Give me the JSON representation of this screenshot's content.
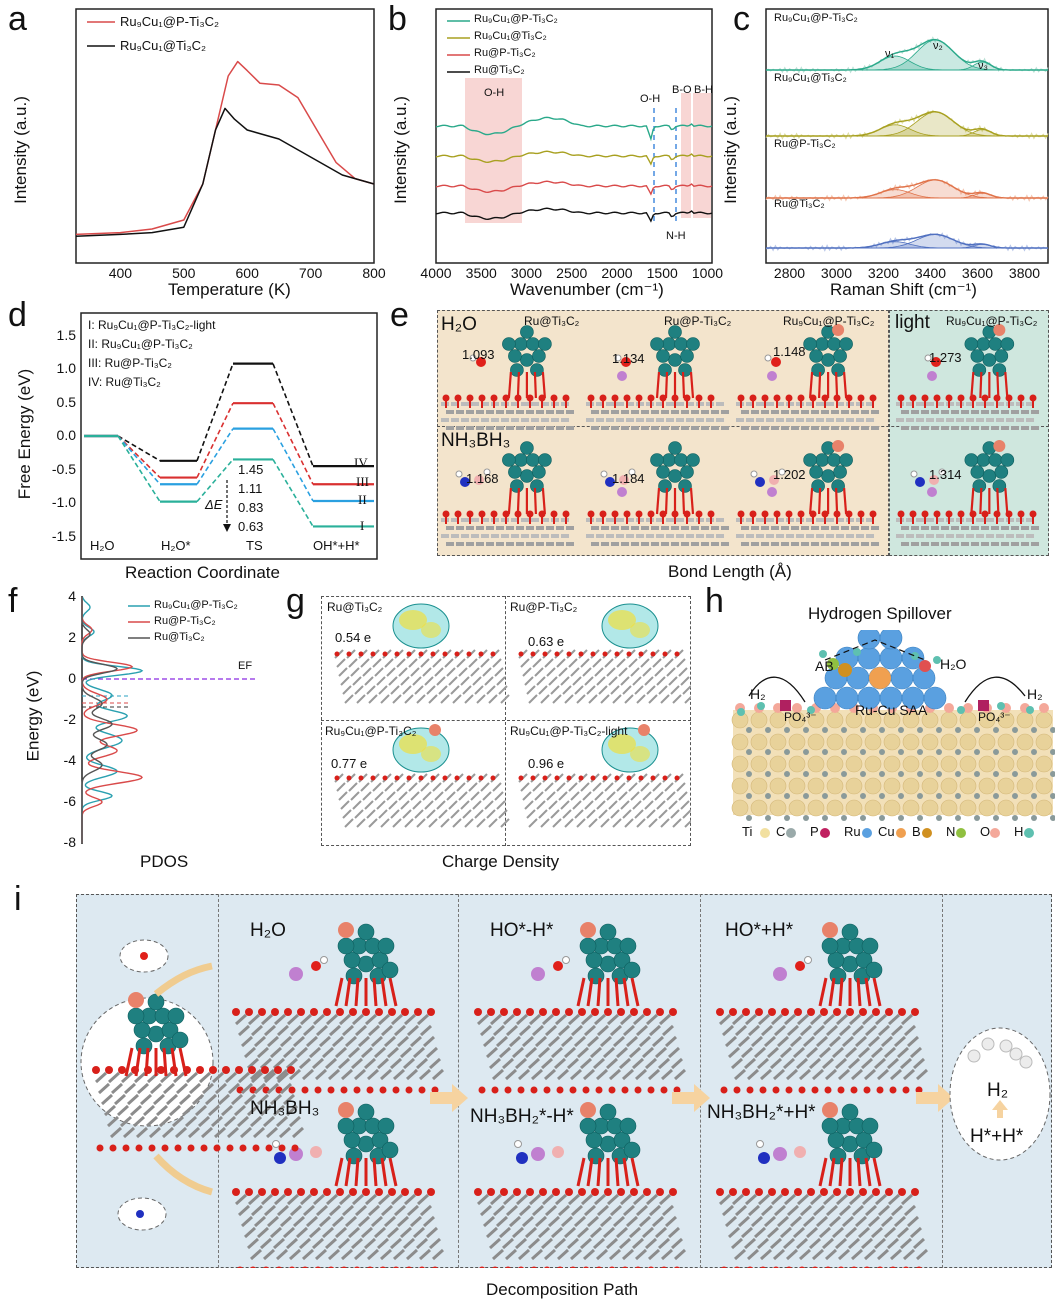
{
  "panels": {
    "a": {
      "letter": "a",
      "legend": [
        "Ru₉Cu₁@P-Ti₃C₂",
        "Ru₉Cu₁@Ti₃C₂"
      ],
      "xlabel": "Temperature (K)",
      "ylabel": "Intensity (a.u.)",
      "xticks": [
        "400",
        "500",
        "600",
        "700",
        "800"
      ]
    },
    "b": {
      "letter": "b",
      "legend": [
        "Ru₉Cu₁@P-Ti₃C₂",
        "Ru₉Cu₁@Ti₃C₂",
        "Ru@P-Ti₃C₂",
        "Ru@Ti₃C₂"
      ],
      "xlabel": "Wavenumber (cm⁻¹)",
      "ylabel": "Intensity (a.u.)",
      "xticks": [
        "4000",
        "3500",
        "3000",
        "2500",
        "2000",
        "1500",
        "1000"
      ],
      "annotations": [
        "O-H",
        "O-H",
        "B-O",
        "B-H",
        "N-H"
      ]
    },
    "c": {
      "letter": "c",
      "series_labels": [
        "Ru₉Cu₁@P-Ti₃C₂",
        "Ru₉Cu₁@Ti₃C₂",
        "Ru@P-Ti₃C₂",
        "Ru@Ti₃C₂"
      ],
      "peak_labels": [
        "ν₁",
        "ν₂",
        "ν₃"
      ],
      "xlabel": "Raman Shift (cm⁻¹)",
      "ylabel": "Intensity (a.u.)",
      "xticks": [
        "2800",
        "3000",
        "3200",
        "3400",
        "3600",
        "3800"
      ]
    },
    "d": {
      "letter": "d",
      "legend": [
        "I: Ru₉Cu₁@P-Ti₃C₂-light",
        "II: Ru₉Cu₁@P-Ti₃C₂",
        "III: Ru@P-Ti₃C₂",
        "IV: Ru@Ti₃C₂"
      ],
      "ylabel": "Free Energy (eV)",
      "xlabel": "Reaction Coordinate",
      "yticks": [
        "1.5",
        "1.0",
        "0.5",
        "0.0",
        "-0.5",
        "-1.0",
        "-1.5"
      ],
      "stages": [
        "H₂O",
        "H₂O*",
        "TS",
        "OH*+H*"
      ],
      "roman": [
        "IV",
        "III",
        "II",
        "I"
      ],
      "barriers": [
        "1.45",
        "1.11",
        "0.83",
        "0.63"
      ],
      "delta": "ΔE"
    },
    "e": {
      "letter": "e",
      "row1_label": "H₂O",
      "row2_label": "NH₃BH₃",
      "light_label": "light",
      "structures": [
        "Ru@Ti₃C₂",
        "Ru@P-Ti₃C₂",
        "Ru₉Cu₁@P-Ti₃C₂",
        "Ru₉Cu₁@P-Ti₃C₂"
      ],
      "bonds_row1": [
        "1.093",
        "1.134",
        "1.148",
        "1.273"
      ],
      "bonds_row2": [
        "1.168",
        "1.184",
        "1.202",
        "1.314"
      ],
      "xlabel": "Bond Length (Å)"
    },
    "f": {
      "letter": "f",
      "legend": [
        "Ru₉Cu₁@P-Ti₃C₂",
        "Ru@P-Ti₃C₂",
        "Ru@Ti₃C₂"
      ],
      "ylabel": "Energy (eV)",
      "yticks": [
        "4",
        "2",
        "0",
        "-2",
        "-4",
        "-6",
        "-8"
      ],
      "ef": "EF",
      "xlabel": "PDOS"
    },
    "g": {
      "letter": "g",
      "cells": [
        {
          "title": "Ru@Ti₃C₂",
          "charge": "0.54 e"
        },
        {
          "title": "Ru@P-Ti₃C₂",
          "charge": "0.63 e"
        },
        {
          "title": "Ru₉Cu₁@P-Ti₃C₂",
          "charge": "0.77 e"
        },
        {
          "title": "Ru₉Cu₁@P-Ti₃C₂-light",
          "charge": "0.96 e"
        }
      ],
      "xlabel": "Charge Density"
    },
    "h": {
      "letter": "h",
      "title": "Hydrogen Spillover",
      "labels": [
        "AB",
        "H₂O",
        "H₂",
        "H₂",
        "PO₄³⁻",
        "PO₄³⁻",
        "Ru-Cu SAA"
      ],
      "legend": [
        "Ti",
        "C",
        "P",
        "Ru",
        "Cu",
        "B",
        "N",
        "O",
        "H"
      ]
    },
    "i": {
      "letter": "i",
      "steps": [
        "H₂O",
        "HO*-H*",
        "HO*+H*",
        "NH₃BH₃",
        "NH₃BH₂*-H*",
        "NH₃BH₂*+H*"
      ],
      "product": "H₂",
      "product_sub": "H*+H*",
      "xlabel": "Decomposition Path"
    }
  },
  "colors": {
    "teal": "#2aa98a",
    "olive": "#a8a020",
    "red": "#d94a4a",
    "black": "#111111",
    "blue": "#2aa0e0",
    "dark_teal": "#1f7a7a"
  },
  "chart_data": [
    {
      "type": "line",
      "panel": "a",
      "xlabel": "Temperature (K)",
      "ylabel": "Intensity (a.u.)",
      "xlim": [
        330,
        800
      ],
      "series": [
        {
          "name": "Ru₉Cu₁@P-Ti₃C₂",
          "x": [
            330,
            400,
            450,
            500,
            530,
            550,
            570,
            585,
            600,
            620,
            650,
            680,
            710,
            740,
            770,
            800
          ],
          "y": [
            0.02,
            0.03,
            0.05,
            0.1,
            0.3,
            0.6,
            0.9,
            0.98,
            0.93,
            0.86,
            0.85,
            0.78,
            0.6,
            0.42,
            0.33,
            0.3
          ]
        },
        {
          "name": "Ru₉Cu₁@Ti₃C₂",
          "x": [
            330,
            400,
            450,
            500,
            530,
            550,
            565,
            580,
            600,
            620,
            650,
            700,
            750,
            800
          ],
          "y": [
            0.01,
            0.02,
            0.03,
            0.06,
            0.3,
            0.6,
            0.72,
            0.66,
            0.6,
            0.58,
            0.55,
            0.45,
            0.35,
            0.3
          ]
        }
      ]
    },
    {
      "type": "line",
      "panel": "b",
      "xlabel": "Wavenumber (cm⁻¹)",
      "ylabel": "Intensity (a.u.)",
      "xlim": [
        4000,
        950
      ],
      "series": [
        {
          "name": "Ru₉Cu₁@P-Ti₃C₂"
        },
        {
          "name": "Ru₉Cu₁@Ti₃C₂"
        },
        {
          "name": "Ru@P-Ti₃C₂"
        },
        {
          "name": "Ru@Ti₃C₂"
        }
      ],
      "peaks": [
        1630,
        1390,
        1180,
        1050
      ],
      "oh_band": [
        3700,
        3100
      ]
    },
    {
      "type": "line",
      "panel": "c",
      "xlabel": "Raman Shift (cm⁻¹)",
      "ylabel": "Intensity (a.u.)",
      "xlim": [
        2700,
        3900
      ],
      "series": [
        {
          "name": "Ru₉Cu₁@P-Ti₃C₂",
          "peaks": [
            3250,
            3420,
            3620
          ]
        },
        {
          "name": "Ru₉Cu₁@Ti₃C₂",
          "peaks": [
            3250,
            3420,
            3620
          ]
        },
        {
          "name": "Ru@P-Ti₃C₂",
          "peaks": [
            3250,
            3420,
            3620
          ]
        },
        {
          "name": "Ru@Ti₃C₂",
          "peaks": [
            3250,
            3420,
            3620
          ]
        }
      ]
    },
    {
      "type": "line",
      "panel": "d",
      "ylabel": "Free Energy (eV)",
      "xlabel": "Reaction Coordinate",
      "ylim": [
        -1.7,
        1.8
      ],
      "categories": [
        "H₂O",
        "H₂O*",
        "TS",
        "OH*+H*"
      ],
      "series": [
        {
          "name": "IV: Ru@Ti₃C₂",
          "values": [
            0.0,
            -0.37,
            1.08,
            -0.45
          ]
        },
        {
          "name": "III: Ru@P-Ti₃C₂",
          "values": [
            0.0,
            -0.62,
            0.49,
            -0.72
          ]
        },
        {
          "name": "II: Ru₉Cu₁@P-Ti₃C₂",
          "values": [
            0.0,
            -0.72,
            0.11,
            -0.97
          ]
        },
        {
          "name": "I: Ru₉Cu₁@P-Ti₃C₂-light",
          "values": [
            0.0,
            -0.98,
            -0.35,
            -1.35
          ]
        }
      ]
    },
    {
      "type": "line",
      "panel": "f",
      "xlabel": "PDOS",
      "ylabel": "Energy (eV)",
      "ylim": [
        -8,
        4
      ],
      "series": [
        {
          "name": "Ru₉Cu₁@P-Ti₃C₂"
        },
        {
          "name": "Ru@P-Ti₃C₂"
        },
        {
          "name": "Ru@Ti₃C₂"
        }
      ]
    }
  ]
}
